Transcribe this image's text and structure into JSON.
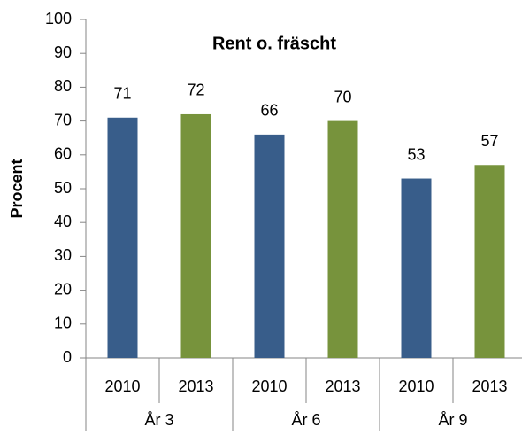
{
  "chart_data": {
    "type": "bar",
    "title": "Rent o. fräscht",
    "y_label": "Procent",
    "categories": [
      "År 3",
      "År 6",
      "År 9"
    ],
    "series": [
      {
        "name": "2010",
        "color": "#385d8a",
        "values": [
          71,
          66,
          53
        ]
      },
      {
        "name": "2013",
        "color": "#77933c",
        "values": [
          72,
          70,
          57
        ]
      }
    ],
    "ylim": [
      0,
      100
    ],
    "yticks": [
      0,
      10,
      20,
      30,
      40,
      50,
      60,
      70,
      80,
      90,
      100
    ],
    "grid": false
  }
}
